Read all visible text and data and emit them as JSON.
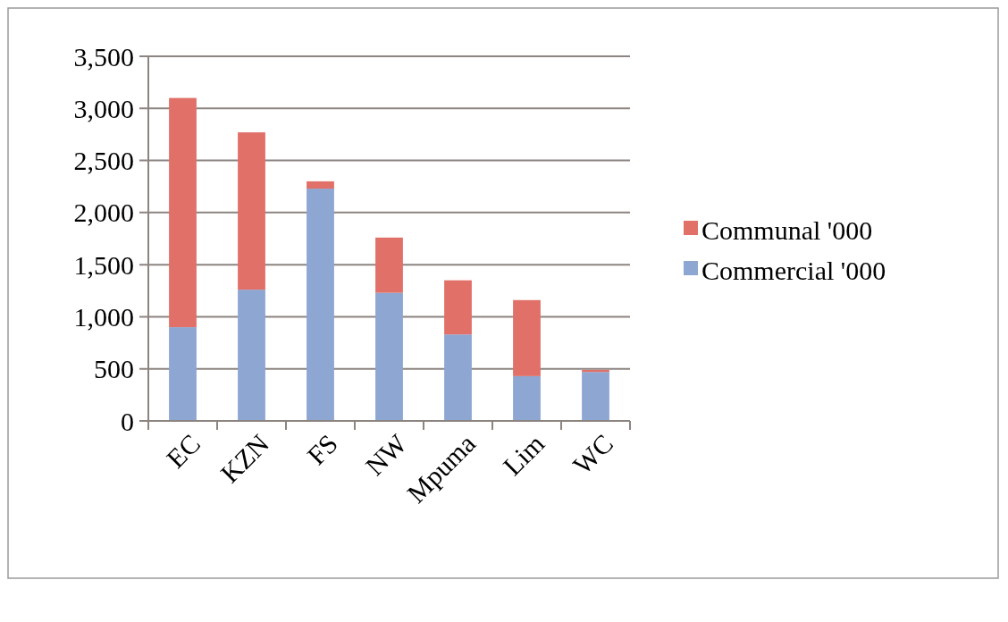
{
  "chart_data": {
    "type": "bar",
    "stacked": true,
    "categories": [
      "EC",
      "KZN",
      "FS",
      "NW",
      "Mpuma",
      "Lim",
      "WC"
    ],
    "series": [
      {
        "name": "Commercial '000",
        "color": "#8ea6d2",
        "values": [
          900,
          1260,
          2230,
          1230,
          830,
          430,
          470
        ]
      },
      {
        "name": "Communal '000",
        "color": "#e07068",
        "values": [
          2200,
          1510,
          70,
          530,
          520,
          730,
          20
        ]
      }
    ],
    "ylim": [
      0,
      3500
    ],
    "yticks": [
      {
        "value": 0,
        "label": "0"
      },
      {
        "value": 500,
        "label": "500"
      },
      {
        "value": 1000,
        "label": "1,000"
      },
      {
        "value": 1500,
        "label": "1,500"
      },
      {
        "value": 2000,
        "label": "2,000"
      },
      {
        "value": 2500,
        "label": "2,500"
      },
      {
        "value": 3000,
        "label": "3,000"
      },
      {
        "value": 3500,
        "label": "3,500"
      }
    ],
    "grid": "y",
    "legend": "right"
  }
}
